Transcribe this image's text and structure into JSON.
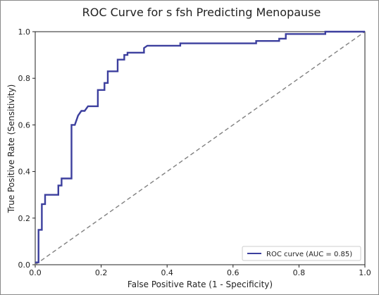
{
  "chart_data": {
    "type": "line",
    "title": "ROC Curve for s fsh Predicting Menopause",
    "xlabel": "False Positive Rate (1 - Specificity)",
    "ylabel": "True Positive Rate (Sensitivity)",
    "xlim": [
      0,
      1
    ],
    "ylim": [
      0,
      1
    ],
    "xticks": [
      "0.0",
      "0.2",
      "0.4",
      "0.6",
      "0.8",
      "1.0"
    ],
    "yticks": [
      "0.0",
      "0.2",
      "0.4",
      "0.6",
      "0.8",
      "1.0"
    ],
    "grid": false,
    "legend_position": "bottom-right",
    "series": [
      {
        "name": "ROC curve (AUC = 0.85)",
        "color": "#3c3f9e",
        "style": "solid",
        "x": [
          0.0,
          0.01,
          0.01,
          0.02,
          0.02,
          0.03,
          0.03,
          0.04,
          0.04,
          0.07,
          0.07,
          0.08,
          0.08,
          0.09,
          0.09,
          0.11,
          0.11,
          0.12,
          0.13,
          0.14,
          0.15,
          0.16,
          0.16,
          0.19,
          0.19,
          0.21,
          0.21,
          0.22,
          0.22,
          0.25,
          0.25,
          0.27,
          0.27,
          0.28,
          0.28,
          0.33,
          0.33,
          0.34,
          0.44,
          0.44,
          0.67,
          0.67,
          0.74,
          0.74,
          0.76,
          0.76,
          0.88,
          0.88,
          1.0
        ],
        "y": [
          0.01,
          0.01,
          0.15,
          0.15,
          0.26,
          0.26,
          0.3,
          0.3,
          0.3,
          0.3,
          0.34,
          0.34,
          0.37,
          0.37,
          0.37,
          0.37,
          0.6,
          0.6,
          0.64,
          0.66,
          0.66,
          0.68,
          0.68,
          0.68,
          0.75,
          0.75,
          0.78,
          0.78,
          0.83,
          0.83,
          0.88,
          0.88,
          0.9,
          0.9,
          0.91,
          0.91,
          0.93,
          0.94,
          0.94,
          0.95,
          0.95,
          0.96,
          0.96,
          0.97,
          0.97,
          0.99,
          0.99,
          1.0,
          1.0
        ]
      },
      {
        "name": "",
        "color": "#808080",
        "style": "dashed",
        "x": [
          0,
          1
        ],
        "y": [
          0,
          1
        ]
      }
    ]
  }
}
